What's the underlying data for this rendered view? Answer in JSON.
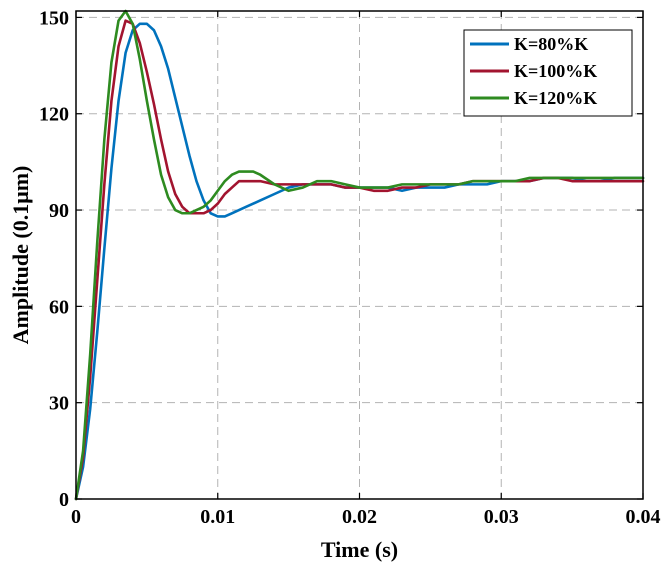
{
  "chart_data": {
    "type": "line",
    "title": "",
    "xlabel": "Time (s)",
    "ylabel": "Amplitude (0.1μm)",
    "xlim": [
      0,
      0.04
    ],
    "ylim": [
      0,
      152
    ],
    "x_ticks": [
      0,
      0.01,
      0.02,
      0.03,
      0.04
    ],
    "x_tick_labels": [
      "0",
      "0.01",
      "0.02",
      "0.03",
      "0.04"
    ],
    "y_ticks": [
      0,
      30,
      60,
      90,
      120,
      150
    ],
    "y_tick_labels": [
      "0",
      "30",
      "60",
      "90",
      "120",
      "150"
    ],
    "grid": true,
    "legend_position": "top-right",
    "series": [
      {
        "name": "K=80%K",
        "color": "#0072BD",
        "x": [
          0,
          0.0005,
          0.001,
          0.0015,
          0.002,
          0.0025,
          0.003,
          0.0035,
          0.004,
          0.0045,
          0.005,
          0.0055,
          0.006,
          0.0065,
          0.007,
          0.0075,
          0.008,
          0.0085,
          0.009,
          0.0095,
          0.01,
          0.0105,
          0.011,
          0.0115,
          0.012,
          0.013,
          0.014,
          0.015,
          0.016,
          0.017,
          0.018,
          0.019,
          0.02,
          0.021,
          0.022,
          0.023,
          0.024,
          0.025,
          0.026,
          0.027,
          0.028,
          0.029,
          0.03,
          0.031,
          0.032,
          0.033,
          0.034,
          0.035,
          0.036,
          0.037,
          0.038,
          0.039,
          0.04
        ],
        "y": [
          0,
          10,
          28,
          52,
          78,
          103,
          124,
          139,
          146,
          148,
          148,
          146,
          141,
          134,
          125,
          116,
          107,
          99,
          93,
          89,
          88,
          88,
          89,
          90,
          91,
          93,
          95,
          97,
          98,
          98,
          98,
          97,
          97,
          97,
          97,
          96,
          97,
          97,
          97,
          98,
          98,
          98,
          99,
          99,
          99,
          100,
          100,
          100,
          99,
          99,
          100,
          100,
          100
        ]
      },
      {
        "name": "K=100%K",
        "color": "#A2142F",
        "x": [
          0,
          0.0005,
          0.001,
          0.0015,
          0.002,
          0.0025,
          0.003,
          0.0035,
          0.004,
          0.0045,
          0.005,
          0.0055,
          0.006,
          0.0065,
          0.007,
          0.0075,
          0.008,
          0.0085,
          0.009,
          0.0095,
          0.01,
          0.0105,
          0.011,
          0.0115,
          0.012,
          0.013,
          0.014,
          0.015,
          0.016,
          0.017,
          0.018,
          0.019,
          0.02,
          0.021,
          0.022,
          0.023,
          0.024,
          0.025,
          0.026,
          0.027,
          0.028,
          0.029,
          0.03,
          0.031,
          0.032,
          0.033,
          0.034,
          0.035,
          0.036,
          0.037,
          0.038,
          0.039,
          0.04
        ],
        "y": [
          0,
          13,
          38,
          68,
          98,
          124,
          141,
          149,
          148,
          142,
          133,
          123,
          112,
          102,
          95,
          91,
          89,
          89,
          89,
          90,
          92,
          95,
          97,
          99,
          99,
          99,
          98,
          98,
          98,
          98,
          98,
          97,
          97,
          96,
          96,
          97,
          97,
          98,
          98,
          98,
          99,
          99,
          99,
          99,
          99,
          100,
          100,
          99,
          99,
          99,
          99,
          99,
          99
        ]
      },
      {
        "name": "K=120%K",
        "color": "#2E8B20",
        "x": [
          0,
          0.0005,
          0.001,
          0.0015,
          0.002,
          0.0025,
          0.003,
          0.0035,
          0.004,
          0.0045,
          0.005,
          0.0055,
          0.006,
          0.0065,
          0.007,
          0.0075,
          0.008,
          0.0085,
          0.009,
          0.0095,
          0.01,
          0.0105,
          0.011,
          0.0115,
          0.012,
          0.0125,
          0.013,
          0.014,
          0.015,
          0.016,
          0.017,
          0.018,
          0.019,
          0.02,
          0.021,
          0.022,
          0.023,
          0.024,
          0.025,
          0.026,
          0.027,
          0.028,
          0.029,
          0.03,
          0.031,
          0.032,
          0.033,
          0.034,
          0.035,
          0.036,
          0.037,
          0.038,
          0.039,
          0.04
        ],
        "y": [
          0,
          15,
          45,
          80,
          112,
          136,
          149,
          152,
          148,
          137,
          124,
          112,
          101,
          94,
          90,
          89,
          89,
          90,
          91,
          93,
          96,
          99,
          101,
          102,
          102,
          102,
          101,
          98,
          96,
          97,
          99,
          99,
          98,
          97,
          97,
          97,
          98,
          98,
          98,
          98,
          98,
          99,
          99,
          99,
          99,
          100,
          100,
          100,
          100,
          100,
          100,
          100,
          100,
          100
        ]
      }
    ]
  }
}
